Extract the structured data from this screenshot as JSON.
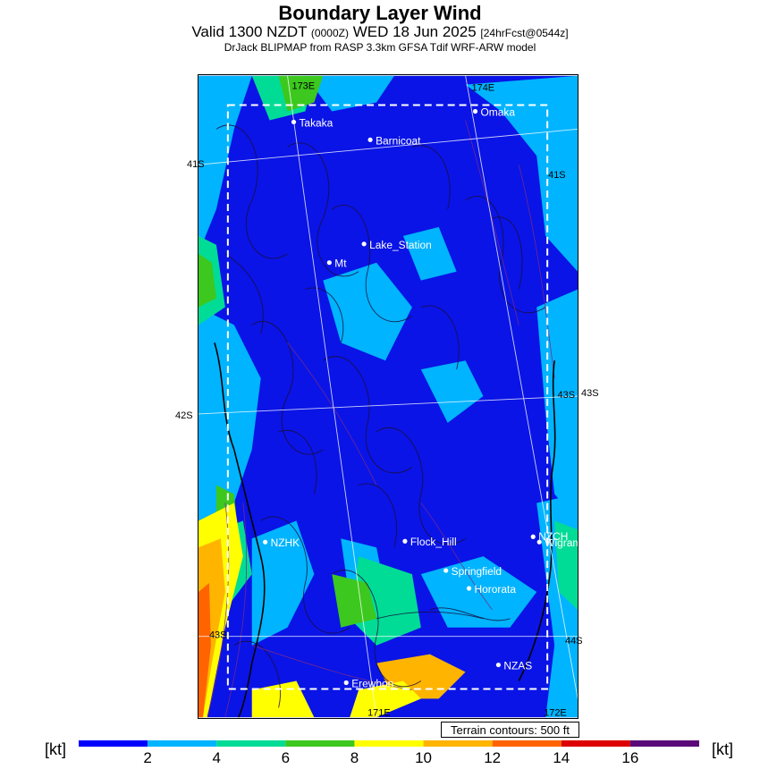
{
  "header": {
    "title": "Boundary Layer Wind",
    "valid_prefix": "Valid 1300 NZDT",
    "utc": "(0000Z)",
    "date": "WED 18 Jun 2025",
    "forecast": "[24hrFcst@0544z]",
    "model": "DrJack BLIPMAP from RASP 3.3km GFSA Tdif WRF-ARW model"
  },
  "map": {
    "lat_labels": [
      "41S",
      "42S",
      "42S",
      "43S",
      "43S",
      "44S"
    ],
    "lon_labels": [
      "173E",
      "174E",
      "171E",
      "172E"
    ],
    "places": [
      {
        "name": "Takaka"
      },
      {
        "name": "Omaka"
      },
      {
        "name": "Barnicoat"
      },
      {
        "name": "Lake_Station"
      },
      {
        "name": "Mt"
      },
      {
        "name": "NZHK"
      },
      {
        "name": "Flock_Hill"
      },
      {
        "name": "NZCH"
      },
      {
        "name": "Wigram"
      },
      {
        "name": "Springfield"
      },
      {
        "name": "Hororata"
      },
      {
        "name": "NZAS"
      },
      {
        "name": "Erewhon"
      }
    ],
    "terrain_note": "Terrain contours: 500 ft"
  },
  "colorbar": {
    "unit": "[kt]",
    "ticks": [
      "2",
      "4",
      "6",
      "8",
      "10",
      "12",
      "14",
      "16"
    ],
    "colors": [
      "#0000ff",
      "#00b4ff",
      "#00dc96",
      "#3cc81e",
      "#ffff00",
      "#ffb400",
      "#ff6400",
      "#dc0000",
      "#5a0a78"
    ]
  }
}
